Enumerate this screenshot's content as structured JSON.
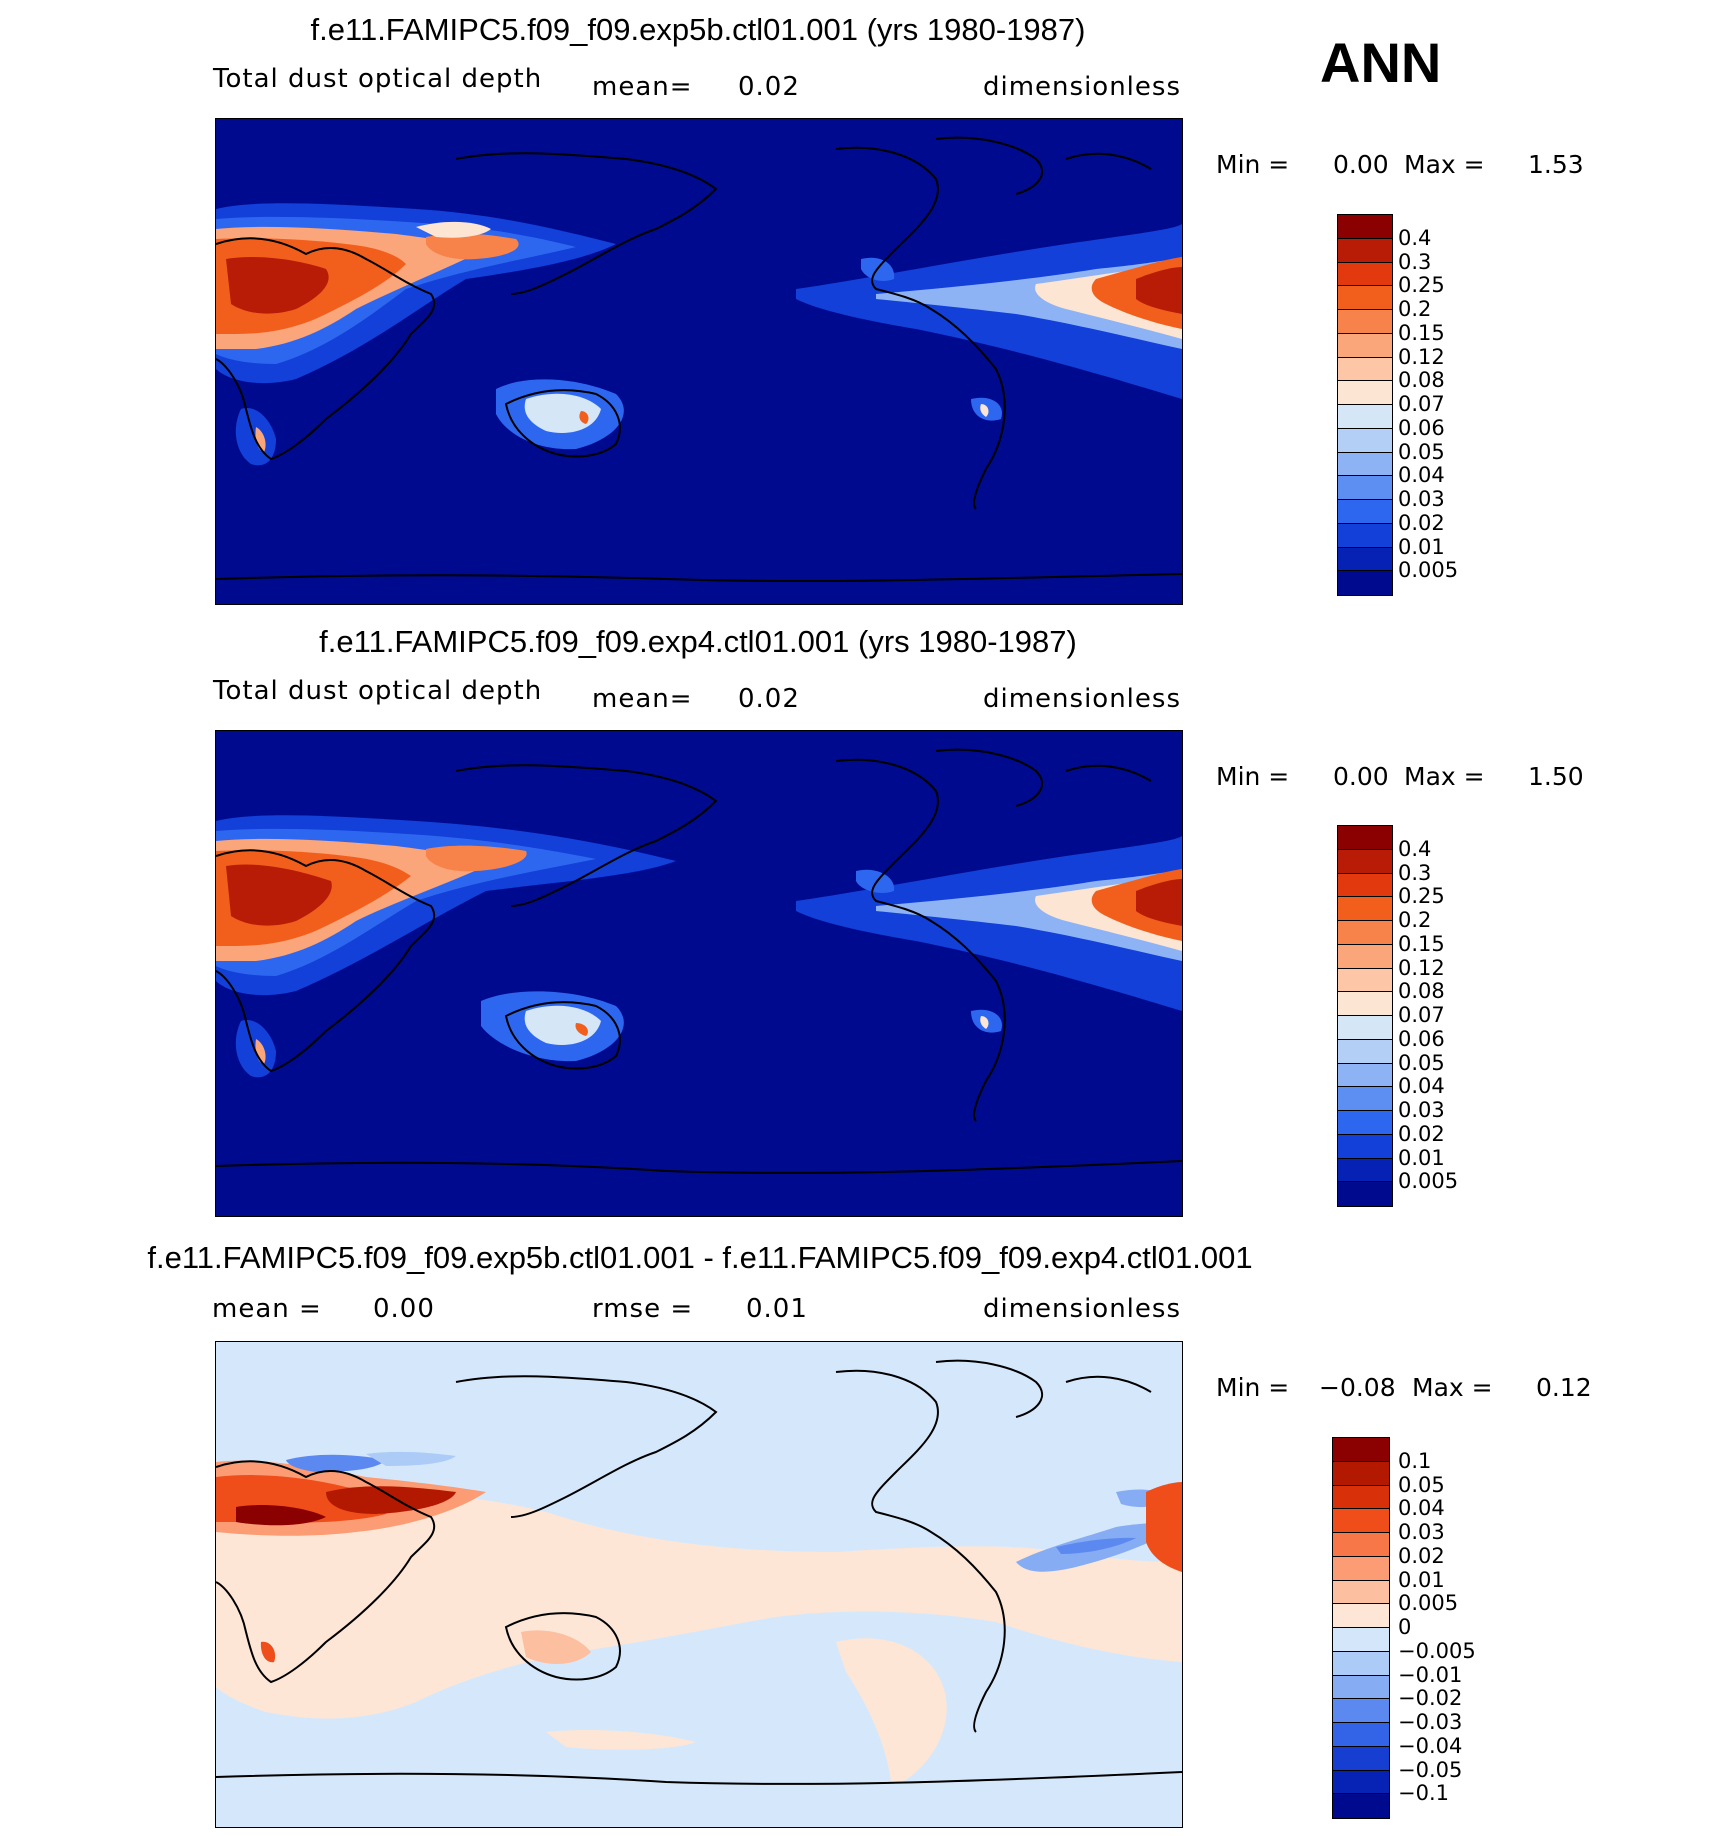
{
  "season": "ANN",
  "panels": [
    {
      "title": "f.e11.FAMIPC5.f09_f09.exp5b.ctl01.001 (yrs 1980-1987)",
      "variable": "Total dust optical depth",
      "stat_label": "mean=",
      "stat_value": "0.02",
      "units": "dimensionless",
      "min_label": "Min =",
      "min_value": "0.00",
      "max_label": "Max =",
      "max_value": "1.53",
      "colorbar_labels": [
        "0.4",
        "0.3",
        "0.25",
        "0.2",
        "0.15",
        "0.12",
        "0.08",
        "0.07",
        "0.06",
        "0.05",
        "0.04",
        "0.03",
        "0.02",
        "0.01",
        "0.005"
      ],
      "colorbar_colors": [
        "#8b0000",
        "#b81c06",
        "#e23a0e",
        "#f25f1d",
        "#f7834b",
        "#fba57a",
        "#fdc6a6",
        "#fde5d4",
        "#d5e6f7",
        "#b3cff5",
        "#8db3f5",
        "#5d8ff3",
        "#2e67ef",
        "#1240d9",
        "#0522b5",
        "#000a8f"
      ]
    },
    {
      "title": "f.e11.FAMIPC5.f09_f09.exp4.ctl01.001 (yrs 1980-1987)",
      "variable": "Total dust optical depth",
      "stat_label": "mean=",
      "stat_value": "0.02",
      "units": "dimensionless",
      "min_label": "Min =",
      "min_value": "0.00",
      "max_label": "Max =",
      "max_value": "1.50",
      "colorbar_labels": [
        "0.4",
        "0.3",
        "0.25",
        "0.2",
        "0.15",
        "0.12",
        "0.08",
        "0.07",
        "0.06",
        "0.05",
        "0.04",
        "0.03",
        "0.02",
        "0.01",
        "0.005"
      ],
      "colorbar_colors": [
        "#8b0000",
        "#b81c06",
        "#e23a0e",
        "#f25f1d",
        "#f7834b",
        "#fba57a",
        "#fdc6a6",
        "#fde5d4",
        "#d5e6f7",
        "#b3cff5",
        "#8db3f5",
        "#5d8ff3",
        "#2e67ef",
        "#1240d9",
        "#0522b5",
        "#000a8f"
      ]
    },
    {
      "title": "f.e11.FAMIPC5.f09_f09.exp5b.ctl01.001 - f.e11.FAMIPC5.f09_f09.exp4.ctl01.001",
      "mean_label": "mean =",
      "mean_value": "0.00",
      "rmse_label": "rmse =",
      "rmse_value": "0.01",
      "units": "dimensionless",
      "min_label": "Min =",
      "min_value": "−0.08",
      "max_label": "Max =",
      "max_value": "0.12",
      "colorbar_labels": [
        "0.1",
        "0.05",
        "0.04",
        "0.03",
        "0.02",
        "0.01",
        "0.005",
        "0",
        "−0.005",
        "−0.01",
        "−0.02",
        "−0.03",
        "−0.04",
        "−0.05",
        "−0.1"
      ],
      "colorbar_colors": [
        "#8b0000",
        "#b31800",
        "#d83008",
        "#ef4e1a",
        "#f77748",
        "#fb9c74",
        "#fcbfa0",
        "#fde6d6",
        "#d3e6fa",
        "#adcbf7",
        "#86acf3",
        "#5c89ef",
        "#3363e6",
        "#163fd2",
        "#0623b5",
        "#000a8f"
      ]
    }
  ],
  "colors": {
    "ocean_dust": "#000a8f",
    "diff_background": "#d5e8fb"
  }
}
